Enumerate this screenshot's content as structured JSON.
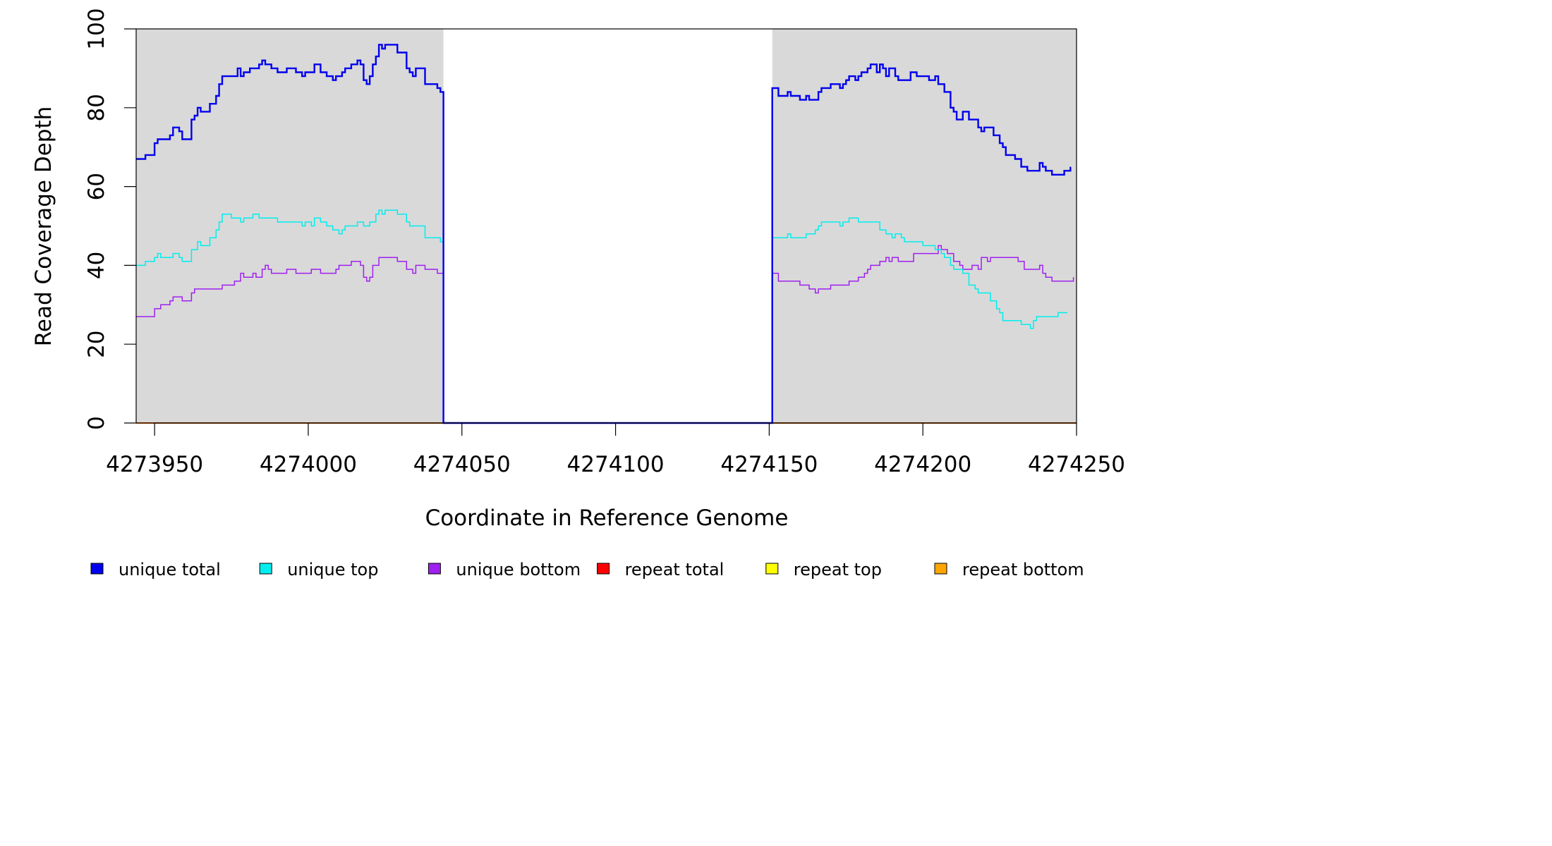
{
  "chart_data": {
    "type": "line",
    "title": "",
    "xlabel": "Coordinate in Reference Genome",
    "ylabel": "Read Coverage Depth",
    "xlim": [
      4273944,
      4274250
    ],
    "ylim": [
      0,
      100
    ],
    "x_ticks": [
      4273950,
      4274000,
      4274050,
      4274100,
      4274150,
      4274200,
      4274250
    ],
    "x_tick_labels": [
      "4273950",
      "4274000",
      "4274050",
      "4274100",
      "4274150",
      "4274200",
      "4274250"
    ],
    "y_ticks": [
      0,
      20,
      40,
      60,
      80,
      100
    ],
    "y_tick_labels": [
      "0",
      "20",
      "40",
      "60",
      "80",
      "100"
    ],
    "grid": false,
    "legend_position": "bottom",
    "shaded_regions": [
      {
        "x0": 4273944,
        "x1": 4274044,
        "color": "#d9d9d9"
      },
      {
        "x0": 4274151,
        "x1": 4274250,
        "color": "#d9d9d9"
      }
    ],
    "series": [
      {
        "name": "unique total",
        "color": "#0000ee",
        "width": 2.4,
        "points": [
          [
            4273944,
            67
          ],
          [
            4273947,
            68
          ],
          [
            4273950,
            71
          ],
          [
            4273951,
            72
          ],
          [
            4273955,
            73
          ],
          [
            4273956,
            75
          ],
          [
            4273958,
            74
          ],
          [
            4273959,
            72
          ],
          [
            4273962,
            77
          ],
          [
            4273963,
            78
          ],
          [
            4273964,
            80
          ],
          [
            4273965,
            79
          ],
          [
            4273968,
            81
          ],
          [
            4273970,
            83
          ],
          [
            4273971,
            86
          ],
          [
            4273972,
            88
          ],
          [
            4273977,
            90
          ],
          [
            4273978,
            88
          ],
          [
            4273979,
            89
          ],
          [
            4273981,
            90
          ],
          [
            4273984,
            91
          ],
          [
            4273985,
            92
          ],
          [
            4273986,
            91
          ],
          [
            4273988,
            90
          ],
          [
            4273990,
            89
          ],
          [
            4273993,
            90
          ],
          [
            4273996,
            89
          ],
          [
            4273998,
            88
          ],
          [
            4273999,
            89
          ],
          [
            4274002,
            91
          ],
          [
            4274004,
            89
          ],
          [
            4274006,
            88
          ],
          [
            4274008,
            87
          ],
          [
            4274009,
            88
          ],
          [
            4274011,
            89
          ],
          [
            4274012,
            90
          ],
          [
            4274014,
            91
          ],
          [
            4274016,
            92
          ],
          [
            4274017,
            91
          ],
          [
            4274018,
            87
          ],
          [
            4274019,
            86
          ],
          [
            4274020,
            88
          ],
          [
            4274021,
            91
          ],
          [
            4274022,
            93
          ],
          [
            4274023,
            96
          ],
          [
            4274024,
            95
          ],
          [
            4274025,
            96
          ],
          [
            4274029,
            94
          ],
          [
            4274032,
            90
          ],
          [
            4274033,
            89
          ],
          [
            4274034,
            88
          ],
          [
            4274035,
            90
          ],
          [
            4274038,
            86
          ],
          [
            4274042,
            85
          ],
          [
            4274043,
            84
          ],
          [
            4274044,
            0
          ],
          [
            4274151,
            85
          ],
          [
            4274153,
            83
          ],
          [
            4274156,
            84
          ],
          [
            4274157,
            83
          ],
          [
            4274160,
            82
          ],
          [
            4274162,
            83
          ],
          [
            4274163,
            82
          ],
          [
            4274166,
            84
          ],
          [
            4274167,
            85
          ],
          [
            4274170,
            86
          ],
          [
            4274173,
            85
          ],
          [
            4274174,
            86
          ],
          [
            4274175,
            87
          ],
          [
            4274176,
            88
          ],
          [
            4274178,
            87
          ],
          [
            4274179,
            88
          ],
          [
            4274180,
            89
          ],
          [
            4274182,
            90
          ],
          [
            4274183,
            91
          ],
          [
            4274185,
            89
          ],
          [
            4274186,
            91
          ],
          [
            4274187,
            90
          ],
          [
            4274188,
            88
          ],
          [
            4274189,
            90
          ],
          [
            4274191,
            88
          ],
          [
            4274192,
            87
          ],
          [
            4274196,
            89
          ],
          [
            4274198,
            88
          ],
          [
            4274202,
            87
          ],
          [
            4274204,
            88
          ],
          [
            4274205,
            86
          ],
          [
            4274207,
            84
          ],
          [
            4274209,
            80
          ],
          [
            4274210,
            79
          ],
          [
            4274211,
            77
          ],
          [
            4274213,
            79
          ],
          [
            4274215,
            77
          ],
          [
            4274218,
            75
          ],
          [
            4274219,
            74
          ],
          [
            4274220,
            75
          ],
          [
            4274223,
            73
          ],
          [
            4274225,
            71
          ],
          [
            4274226,
            70
          ],
          [
            4274227,
            68
          ],
          [
            4274230,
            67
          ],
          [
            4274232,
            65
          ],
          [
            4274234,
            64
          ],
          [
            4274238,
            66
          ],
          [
            4274239,
            65
          ],
          [
            4274240,
            64
          ],
          [
            4274242,
            63
          ],
          [
            4274246,
            64
          ],
          [
            4274248,
            65
          ]
        ]
      },
      {
        "name": "unique top",
        "color": "#00eeee",
        "width": 1.5,
        "points": [
          [
            4273944,
            40
          ],
          [
            4273947,
            41
          ],
          [
            4273950,
            42
          ],
          [
            4273951,
            43
          ],
          [
            4273952,
            42
          ],
          [
            4273956,
            43
          ],
          [
            4273958,
            42
          ],
          [
            4273959,
            41
          ],
          [
            4273962,
            44
          ],
          [
            4273964,
            46
          ],
          [
            4273965,
            45
          ],
          [
            4273968,
            47
          ],
          [
            4273970,
            49
          ],
          [
            4273971,
            51
          ],
          [
            4273972,
            53
          ],
          [
            4273975,
            52
          ],
          [
            4273978,
            51
          ],
          [
            4273979,
            52
          ],
          [
            4273982,
            53
          ],
          [
            4273984,
            52
          ],
          [
            4273990,
            51
          ],
          [
            4273998,
            50
          ],
          [
            4273999,
            51
          ],
          [
            4274001,
            50
          ],
          [
            4274002,
            52
          ],
          [
            4274004,
            51
          ],
          [
            4274006,
            50
          ],
          [
            4274008,
            49
          ],
          [
            4274010,
            48
          ],
          [
            4274011,
            49
          ],
          [
            4274012,
            50
          ],
          [
            4274016,
            51
          ],
          [
            4274018,
            50
          ],
          [
            4274020,
            51
          ],
          [
            4274022,
            53
          ],
          [
            4274023,
            54
          ],
          [
            4274024,
            53
          ],
          [
            4274025,
            54
          ],
          [
            4274029,
            53
          ],
          [
            4274032,
            51
          ],
          [
            4274033,
            50
          ],
          [
            4274038,
            47
          ],
          [
            4274043,
            46
          ],
          [
            4274044,
            0
          ],
          [
            4274151,
            47
          ],
          [
            4274156,
            48
          ],
          [
            4274157,
            47
          ],
          [
            4274162,
            48
          ],
          [
            4274165,
            49
          ],
          [
            4274166,
            50
          ],
          [
            4274167,
            51
          ],
          [
            4274173,
            50
          ],
          [
            4274174,
            51
          ],
          [
            4274176,
            52
          ],
          [
            4274179,
            51
          ],
          [
            4274186,
            49
          ],
          [
            4274188,
            48
          ],
          [
            4274190,
            47
          ],
          [
            4274191,
            48
          ],
          [
            4274193,
            47
          ],
          [
            4274194,
            46
          ],
          [
            4274200,
            45
          ],
          [
            4274204,
            44
          ],
          [
            4274206,
            43
          ],
          [
            4274207,
            42
          ],
          [
            4274209,
            40
          ],
          [
            4274210,
            39
          ],
          [
            4274213,
            38
          ],
          [
            4274215,
            35
          ],
          [
            4274217,
            34
          ],
          [
            4274218,
            33
          ],
          [
            4274222,
            31
          ],
          [
            4274224,
            29
          ],
          [
            4274225,
            28
          ],
          [
            4274226,
            26
          ],
          [
            4274232,
            25
          ],
          [
            4274235,
            24
          ],
          [
            4274236,
            26
          ],
          [
            4274237,
            27
          ],
          [
            4274244,
            28
          ],
          [
            4274247,
            28
          ]
        ]
      },
      {
        "name": "unique bottom",
        "color": "#a020f0",
        "width": 1.5,
        "points": [
          [
            4273944,
            27
          ],
          [
            4273950,
            29
          ],
          [
            4273952,
            30
          ],
          [
            4273955,
            31
          ],
          [
            4273956,
            32
          ],
          [
            4273959,
            31
          ],
          [
            4273962,
            33
          ],
          [
            4273963,
            34
          ],
          [
            4273970,
            34
          ],
          [
            4273972,
            35
          ],
          [
            4273976,
            36
          ],
          [
            4273978,
            38
          ],
          [
            4273979,
            37
          ],
          [
            4273982,
            38
          ],
          [
            4273983,
            37
          ],
          [
            4273985,
            39
          ],
          [
            4273986,
            40
          ],
          [
            4273987,
            39
          ],
          [
            4273988,
            38
          ],
          [
            4273993,
            39
          ],
          [
            4273996,
            38
          ],
          [
            4274001,
            39
          ],
          [
            4274004,
            38
          ],
          [
            4274009,
            39
          ],
          [
            4274010,
            40
          ],
          [
            4274014,
            41
          ],
          [
            4274017,
            40
          ],
          [
            4274018,
            37
          ],
          [
            4274019,
            36
          ],
          [
            4274020,
            37
          ],
          [
            4274021,
            40
          ],
          [
            4274023,
            42
          ],
          [
            4274029,
            41
          ],
          [
            4274032,
            39
          ],
          [
            4274034,
            38
          ],
          [
            4274035,
            40
          ],
          [
            4274038,
            39
          ],
          [
            4274042,
            38
          ],
          [
            4274044,
            0
          ],
          [
            4274151,
            38
          ],
          [
            4274153,
            36
          ],
          [
            4274160,
            35
          ],
          [
            4274163,
            34
          ],
          [
            4274165,
            33
          ],
          [
            4274166,
            34
          ],
          [
            4274170,
            35
          ],
          [
            4274176,
            36
          ],
          [
            4274179,
            37
          ],
          [
            4274181,
            38
          ],
          [
            4274182,
            39
          ],
          [
            4274183,
            40
          ],
          [
            4274186,
            41
          ],
          [
            4274188,
            42
          ],
          [
            4274189,
            41
          ],
          [
            4274190,
            42
          ],
          [
            4274192,
            41
          ],
          [
            4274197,
            43
          ],
          [
            4274205,
            45
          ],
          [
            4274206,
            44
          ],
          [
            4274208,
            43
          ],
          [
            4274210,
            41
          ],
          [
            4274212,
            40
          ],
          [
            4274213,
            39
          ],
          [
            4274216,
            40
          ],
          [
            4274218,
            39
          ],
          [
            4274219,
            42
          ],
          [
            4274221,
            41
          ],
          [
            4274222,
            42
          ],
          [
            4274231,
            41
          ],
          [
            4274233,
            39
          ],
          [
            4274238,
            40
          ],
          [
            4274239,
            38
          ],
          [
            4274240,
            37
          ],
          [
            4274242,
            36
          ],
          [
            4274249,
            37
          ]
        ]
      },
      {
        "name": "repeat total",
        "color": "#ff0000",
        "width": 1.5,
        "points": [
          [
            4273944,
            0
          ],
          [
            4274250,
            0
          ]
        ]
      },
      {
        "name": "repeat top",
        "color": "#ffff00",
        "width": 1.5,
        "points": [
          [
            4273944,
            0
          ],
          [
            4274250,
            0
          ]
        ]
      },
      {
        "name": "repeat bottom",
        "color": "#ffa500",
        "width": 2,
        "points": [
          [
            4273944,
            0
          ],
          [
            4274044,
            0
          ],
          [
            4274151,
            0
          ],
          [
            4274250,
            0
          ]
        ]
      }
    ]
  }
}
